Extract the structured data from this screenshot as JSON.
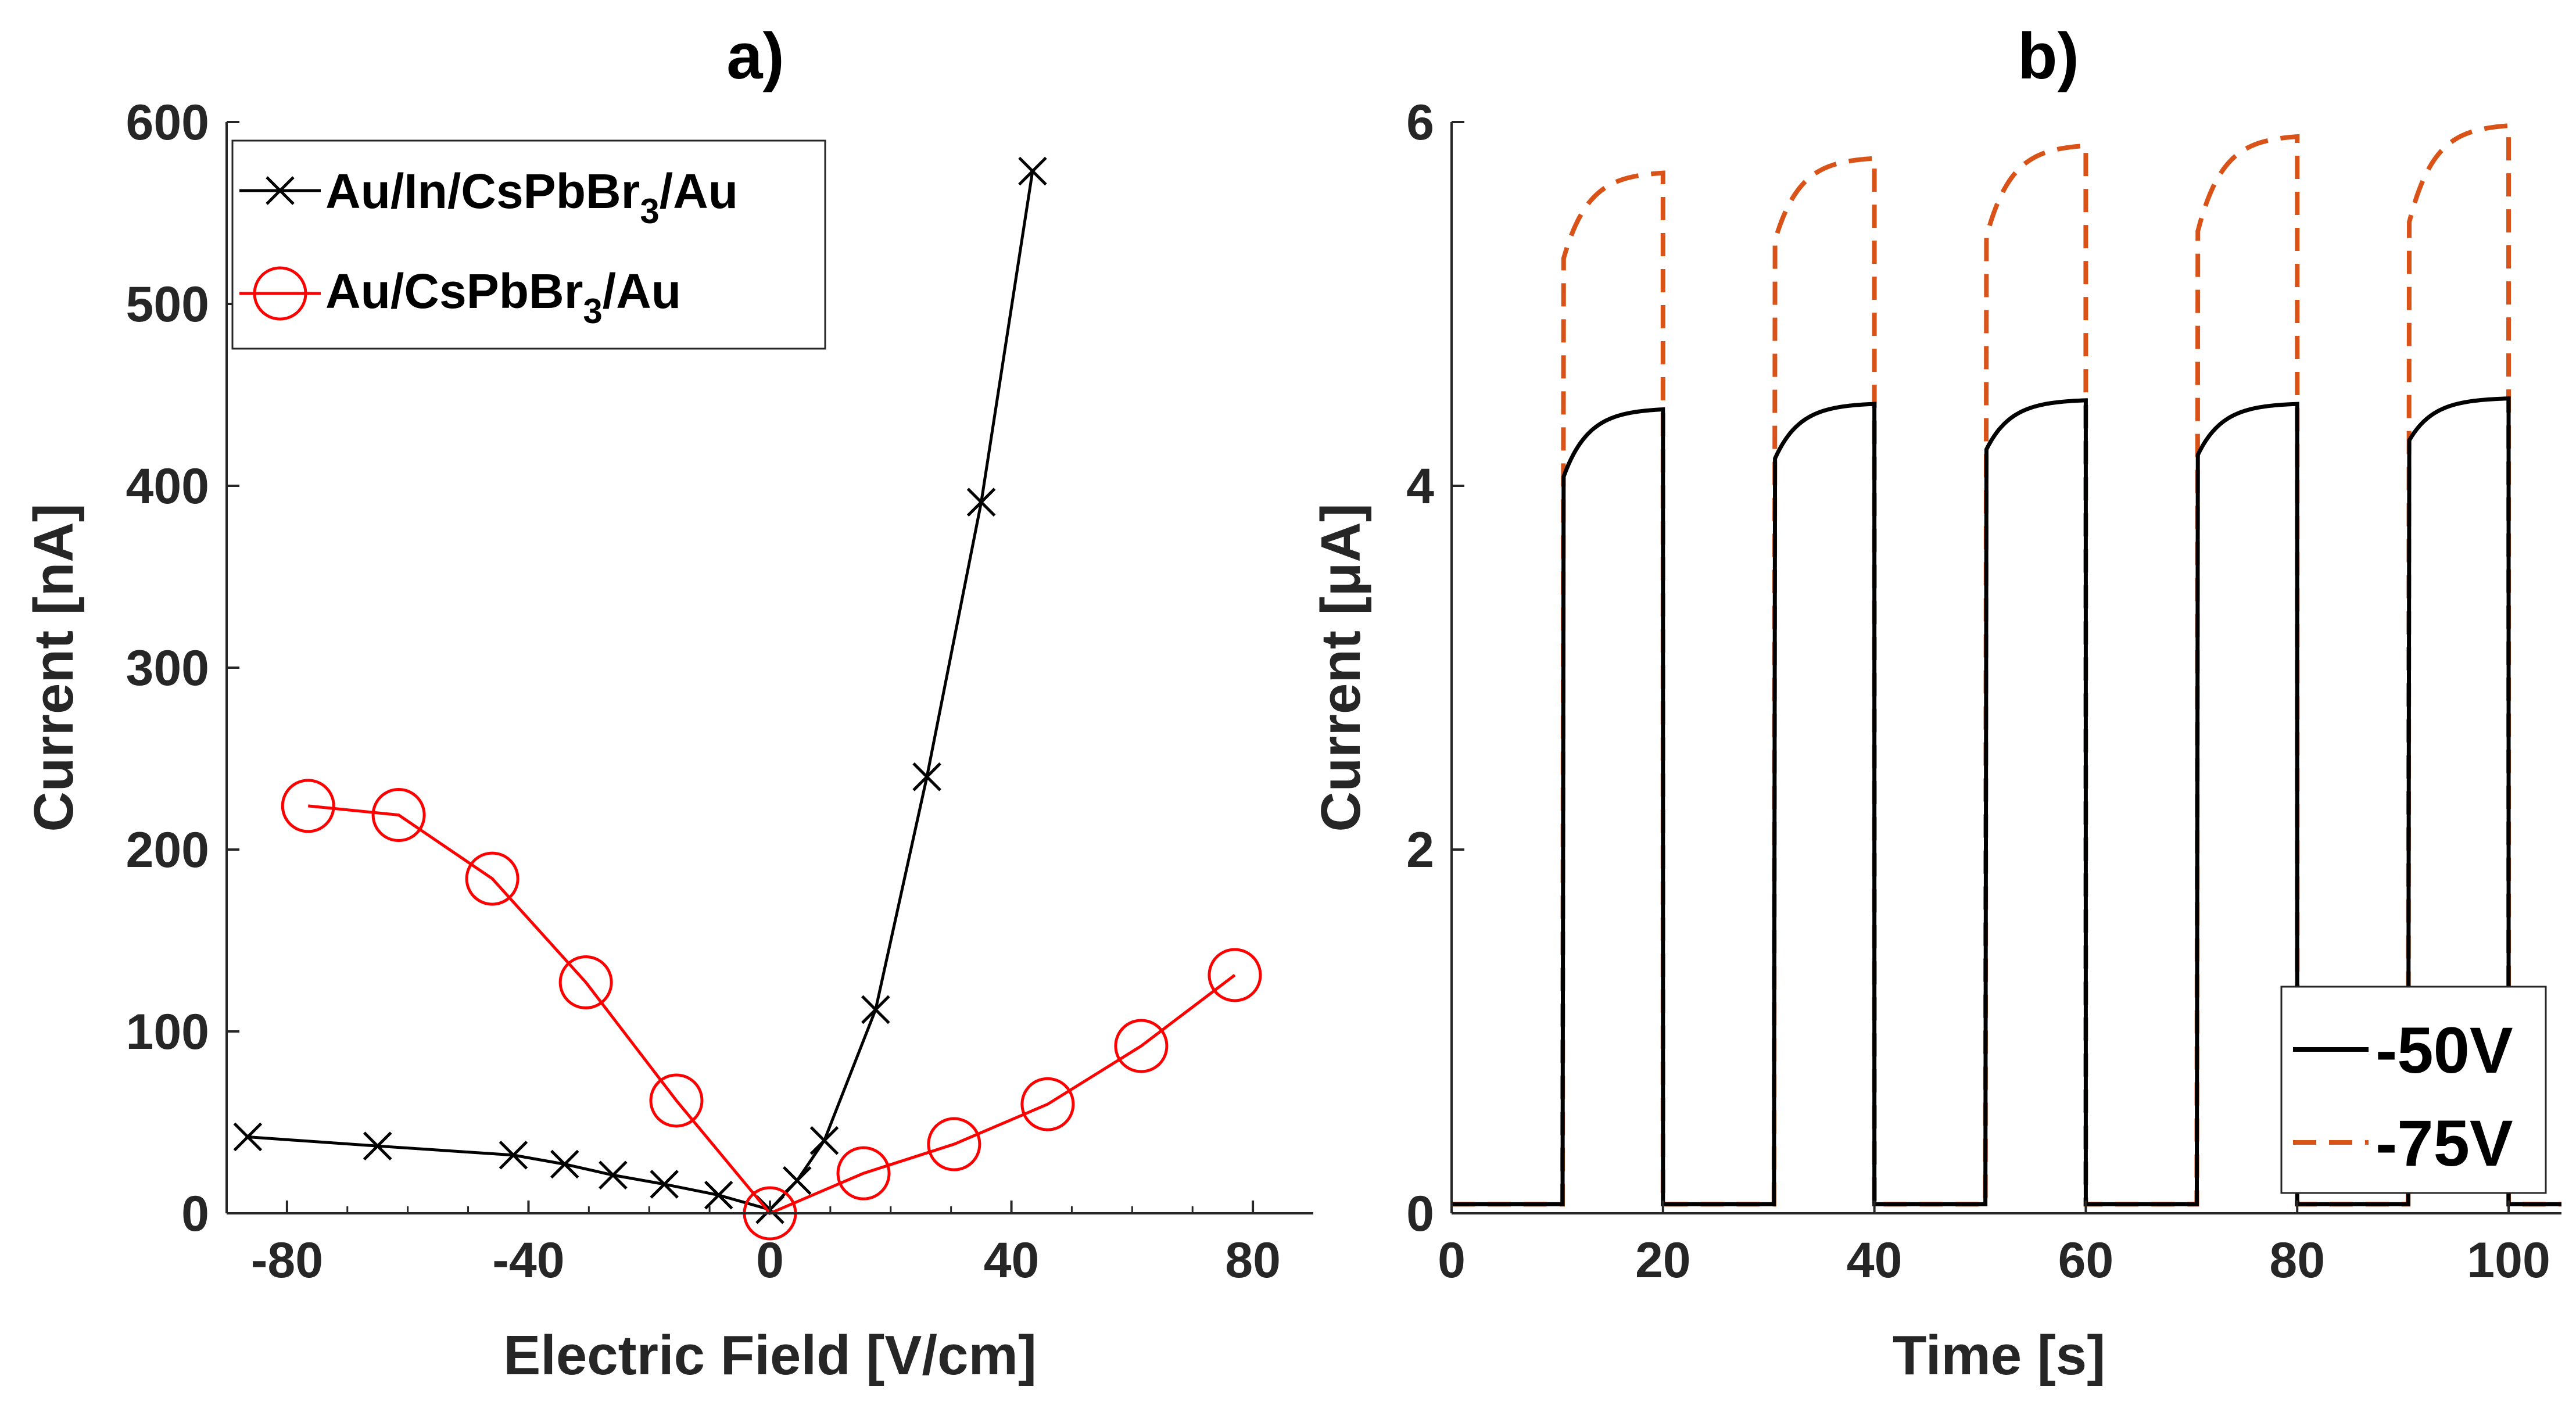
{
  "chart_data": [
    {
      "type": "line",
      "title": "a)",
      "xlabel": "Electric Field [V/cm]",
      "ylabel": "Current [nA]",
      "xlim": [
        -90,
        90
      ],
      "ylim": [
        0,
        600
      ],
      "xticks": [
        -80,
        -40,
        0,
        40,
        80
      ],
      "xtick_labels": [
        "-80",
        "-40",
        "0",
        "40",
        "80"
      ],
      "yticks": [
        0,
        100,
        200,
        300,
        400,
        500,
        600
      ],
      "ytick_labels": [
        "0",
        "100",
        "200",
        "300",
        "400",
        "500",
        "600"
      ],
      "grid": false,
      "legend_position": "top-left",
      "series": [
        {
          "name": "Au/In/CsPbBr3/Au",
          "legend_main": "Au/In/CsPbBr",
          "legend_sub": "3",
          "legend_tail": "/Au",
          "color": "#000000",
          "marker": "x",
          "x": [
            -86.5,
            -65,
            -42.5,
            -34,
            -26,
            -17.5,
            -8.5,
            0,
            4.5,
            9,
            17.5,
            26,
            35,
            43.5
          ],
          "y": [
            42,
            37,
            32,
            27,
            21,
            16,
            10,
            2,
            18,
            40,
            112,
            240,
            391,
            573
          ]
        },
        {
          "name": "Au/CsPbBr3/Au",
          "legend_main": "Au/CsPbBr",
          "legend_sub": "3",
          "legend_tail": "/Au",
          "color": "#ff0000",
          "marker": "o",
          "x": [
            -76.5,
            -61.5,
            -46,
            -30.5,
            -15.5,
            0,
            15.5,
            30.5,
            46,
            61.5,
            77
          ],
          "y": [
            224,
            219,
            184,
            127,
            62,
            0,
            22,
            38,
            60,
            92,
            131
          ]
        }
      ]
    },
    {
      "type": "line",
      "title": "b)",
      "xlabel": "Time [s]",
      "ylabel": "Current [μA]",
      "xlim": [
        0,
        105
      ],
      "ylim": [
        0,
        6
      ],
      "xticks": [
        0,
        20,
        40,
        60,
        80,
        100
      ],
      "xtick_labels": [
        "0",
        "20",
        "40",
        "60",
        "80",
        "100"
      ],
      "yticks": [
        0,
        2,
        4,
        6
      ],
      "ytick_labels": [
        "0",
        "2",
        "4",
        "6"
      ],
      "grid": false,
      "legend_position": "bottom-right",
      "baseline": 0.05,
      "pulses": [
        {
          "on": 10.5,
          "off": 20.0
        },
        {
          "on": 30.5,
          "off": 40.0
        },
        {
          "on": 50.5,
          "off": 60.0
        },
        {
          "on": 70.5,
          "off": 80.0
        },
        {
          "on": 90.5,
          "off": 100.0
        }
      ],
      "series": [
        {
          "name": "-50V",
          "color": "#000000",
          "dash": "solid",
          "pulse_start": [
            4.05,
            4.15,
            4.2,
            4.17,
            4.25
          ],
          "pulse_end": [
            4.42,
            4.45,
            4.47,
            4.45,
            4.48
          ]
        },
        {
          "name": "-75V",
          "color": "#d95319",
          "dash": "dashed",
          "pulse_start": [
            5.25,
            5.35,
            5.37,
            5.4,
            5.45
          ],
          "pulse_end": [
            5.72,
            5.8,
            5.87,
            5.92,
            5.98
          ]
        }
      ]
    }
  ]
}
